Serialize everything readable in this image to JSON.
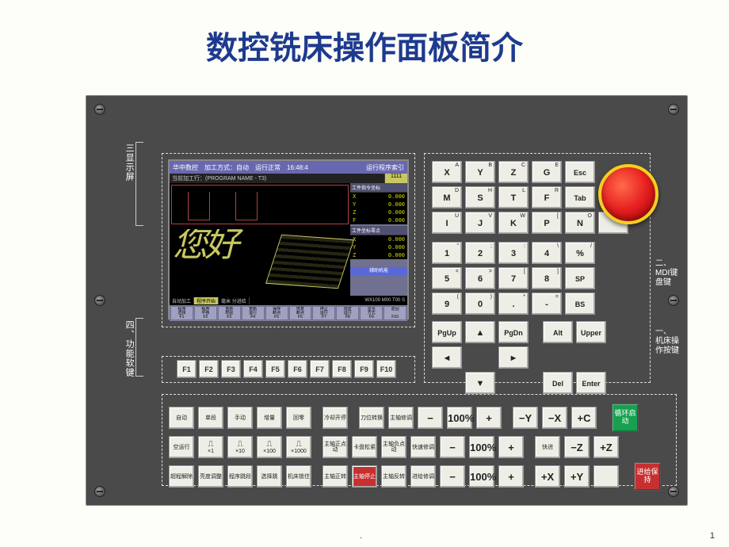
{
  "title": "数控铣床操作面板简介",
  "page_number": "1",
  "labels": {
    "display": "三显示屏",
    "softkey": "四、功能软键",
    "mdi_top": "二、",
    "mdi": "MDI键盘键",
    "machine_top": "一、",
    "machine": "机床操作按键"
  },
  "lcd": {
    "brand": "华中数控",
    "mode_label": "加工方式：",
    "mode": "自动",
    "status": "运行正常",
    "time": "16:48:4",
    "index_label": "运行程序索引",
    "prog_label": "当前加工行：",
    "prog_name": "(PROGRAM NAME - T3)",
    "counter": "1111",
    "side_hdr1": "工件指令坐标",
    "side_hdr2": "工件坐标零点",
    "coords": [
      {
        "axis": "X",
        "val": "0.000"
      },
      {
        "axis": "Y",
        "val": "0.000"
      },
      {
        "axis": "Z",
        "val": "0.000"
      },
      {
        "axis": "F",
        "val": "0.000"
      }
    ],
    "coords2": [
      {
        "axis": "X",
        "val": "0.000"
      },
      {
        "axis": "Y",
        "val": "0.000"
      },
      {
        "axis": "Z",
        "val": "0.000"
      }
    ],
    "aux": "辅助机能",
    "nihao": "您好",
    "tab1": "自动加工",
    "tab2": "程序开始",
    "rate": "毫米  分进给",
    "spindle": "WX100",
    "override": "M00 T00 S",
    "menu": [
      {
        "t1": "程序",
        "t2": "选择",
        "f": "F1"
      },
      {
        "t1": "程序",
        "t2": "平移",
        "f": "F2"
      },
      {
        "t1": "重新",
        "t2": "校验",
        "f": "F3"
      },
      {
        "t1": "重新",
        "t2": "运行",
        "f": "F4"
      },
      {
        "t1": "保存",
        "t2": "断点",
        "f": "F5"
      },
      {
        "t1": "恢复",
        "t2": "断点",
        "f": "F6"
      },
      {
        "t1": "停止",
        "t2": "运行",
        "f": "F7"
      },
      {
        "t1": "指定",
        "t2": "运行",
        "f": "F8"
      },
      {
        "t1": "显示",
        "t2": "方式",
        "f": "F9"
      },
      {
        "t1": "返回",
        "t2": "",
        "f": "F10"
      }
    ]
  },
  "fkeys": [
    "F1",
    "F2",
    "F3",
    "F4",
    "F5",
    "F6",
    "F7",
    "F8",
    "F9",
    "F10"
  ],
  "mdi": {
    "r1": [
      {
        "main": "X",
        "sup": "A"
      },
      {
        "main": "Y",
        "sup": "B"
      },
      {
        "main": "Z",
        "sup": "C"
      },
      {
        "main": "G",
        "sup": "E"
      },
      {
        "main": "Esc",
        "sup": ""
      }
    ],
    "r2": [
      {
        "main": "M",
        "sup": "D"
      },
      {
        "main": "S",
        "sup": "H"
      },
      {
        "main": "T",
        "sup": "L"
      },
      {
        "main": "F",
        "sup": "R"
      },
      {
        "main": "Tab",
        "sup": ""
      }
    ],
    "r3": [
      {
        "main": "I",
        "sup": "U"
      },
      {
        "main": "J",
        "sup": "V"
      },
      {
        "main": "K",
        "sup": "W"
      },
      {
        "main": "P",
        "sup": "["
      },
      {
        "main": "N",
        "sup": "O"
      },
      {
        "main": "",
        "sup": "Q"
      }
    ],
    "r4": [
      {
        "main": "1",
        "sup": "\""
      },
      {
        "main": "2",
        "sup": ";"
      },
      {
        "main": "3",
        "sup": ":"
      },
      {
        "main": "4",
        "sup": "\\"
      },
      {
        "main": "%",
        "sup": "/"
      }
    ],
    "r5": [
      {
        "main": "5",
        "sup": "<"
      },
      {
        "main": "6",
        "sup": ">"
      },
      {
        "main": "7",
        "sup": "["
      },
      {
        "main": "8",
        "sup": "]"
      },
      {
        "main": "SP",
        "sup": ""
      }
    ],
    "r6": [
      {
        "main": "9",
        "sup": "("
      },
      {
        "main": "0",
        "sup": ")"
      },
      {
        "main": ".",
        "sup": "*"
      },
      {
        "main": "-",
        "sup": "="
      },
      {
        "main": "BS",
        "sup": ""
      }
    ],
    "bottom_left": {
      "pgup": "PgUp",
      "up": "▲",
      "pgdn": "PgDn",
      "left": "◄",
      "right": "►",
      "down": "▼"
    },
    "bottom_right": [
      [
        "Alt",
        "Upper"
      ],
      [
        "Del",
        "Enter"
      ]
    ]
  },
  "machine": {
    "r1": [
      {
        "t": "自动"
      },
      {
        "t": "单段"
      },
      {
        "t": "手动"
      },
      {
        "t": "增量"
      },
      {
        "t": "回零"
      },
      null,
      {
        "t": "冷却开停"
      },
      null,
      {
        "t": "刀位转换"
      },
      {
        "t": "主轴修调"
      },
      {
        "t": "−",
        "big": true
      },
      {
        "t": "100%",
        "big": true
      },
      {
        "t": "+",
        "big": true
      },
      null,
      {
        "t": "−Y",
        "big": true
      },
      {
        "t": "−X",
        "big": true
      },
      {
        "t": "+C",
        "big": true
      }
    ],
    "r2": [
      {
        "t": "空运行"
      },
      {
        "t": "×1",
        "icon": "⎍"
      },
      {
        "t": "×10",
        "icon": "⎍"
      },
      {
        "t": "×100",
        "icon": "⎍"
      },
      {
        "t": "×1000",
        "icon": "⎍"
      },
      null,
      {
        "t": "主轴正点动"
      },
      {
        "t": "卡盘松紧"
      },
      {
        "t": "主轴负点动"
      },
      {
        "t": "快速修调"
      },
      {
        "t": "−",
        "big": true
      },
      {
        "t": "100%",
        "big": true
      },
      {
        "t": "+",
        "big": true
      },
      null,
      {
        "t": "快进",
        "big": false
      },
      {
        "t": "−Z",
        "big": true
      },
      {
        "t": "+Z",
        "big": true
      }
    ],
    "r3": [
      {
        "t": "超程解除"
      },
      {
        "t": "亮度调整"
      },
      {
        "t": "程序跳段"
      },
      {
        "t": "选择跳"
      },
      {
        "t": "机床锁住"
      },
      null,
      {
        "t": "主轴正转"
      },
      {
        "t": "主轴停止",
        "red": true
      },
      {
        "t": "主轴反转"
      },
      {
        "t": "进给修调"
      },
      {
        "t": "−",
        "big": true
      },
      {
        "t": "100%",
        "big": true
      },
      {
        "t": "+",
        "big": true
      },
      null,
      {
        "t": "+X",
        "big": true
      },
      {
        "t": "+Y",
        "big": true
      },
      {
        "t": "",
        "big": true
      }
    ],
    "cycle_start": "循环启动",
    "feed_hold": "进给保持"
  },
  "colors": {
    "panel_bg": "#4a4a4a",
    "title": "#1e3a8f",
    "estop": "#e62020",
    "estop_ring": "#f4d020",
    "green": "#16a050",
    "red": "#c83030",
    "key_bg": "#eeeee6",
    "lcd_header": "#6868b0"
  }
}
